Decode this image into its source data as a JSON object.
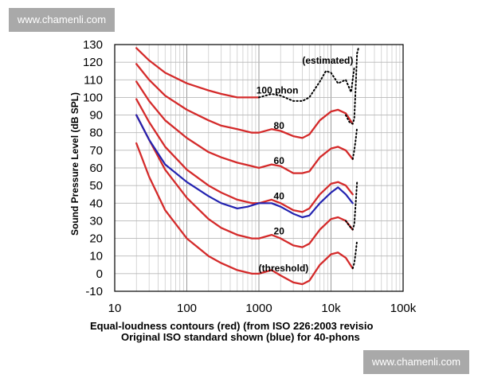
{
  "watermark_top": "www.chamenli.com",
  "watermark_bottom": "www.chamenli.com",
  "chart_data": {
    "type": "line",
    "ylabel": "Sound Pressure Level (dB SPL)",
    "xlabel": "",
    "caption_line1": "Equal-loudness contours (red) (from ISO 226:2003 revisio",
    "caption_line2": "Original ISO standard shown (blue) for 40-phons",
    "x_scale": "log",
    "xlim": [
      10,
      100000
    ],
    "ylim": [
      -10,
      130
    ],
    "x_ticks": [
      {
        "v": 10,
        "label": "10"
      },
      {
        "v": 100,
        "label": "100"
      },
      {
        "v": 1000,
        "label": "1000"
      },
      {
        "v": 10000,
        "label": "10k"
      },
      {
        "v": 100000,
        "label": "100k"
      }
    ],
    "y_ticks": [
      -10,
      0,
      10,
      20,
      30,
      40,
      50,
      60,
      70,
      80,
      90,
      100,
      110,
      120,
      130
    ],
    "grid": true,
    "colors": {
      "red": "#d42a2a",
      "blue": "#2222b0",
      "dotted": "#000000"
    },
    "series": [
      {
        "label": "(threshold)",
        "color": "#d42a2a",
        "style": "solid",
        "points": [
          [
            20,
            74
          ],
          [
            30,
            55
          ],
          [
            50,
            36
          ],
          [
            100,
            20
          ],
          [
            200,
            10
          ],
          [
            300,
            6
          ],
          [
            500,
            2
          ],
          [
            800,
            0
          ],
          [
            1000,
            0
          ],
          [
            1500,
            2
          ],
          [
            2000,
            -1
          ],
          [
            3000,
            -5
          ],
          [
            4000,
            -6
          ],
          [
            5000,
            -4
          ],
          [
            7000,
            5
          ],
          [
            10000,
            11
          ],
          [
            12500,
            12
          ],
          [
            16000,
            9
          ],
          [
            20000,
            3
          ]
        ]
      },
      {
        "label": "20",
        "color": "#d42a2a",
        "style": "solid",
        "points": [
          [
            20,
            90
          ],
          [
            30,
            76
          ],
          [
            50,
            59
          ],
          [
            100,
            43
          ],
          [
            200,
            31
          ],
          [
            300,
            26
          ],
          [
            500,
            22
          ],
          [
            800,
            20
          ],
          [
            1000,
            20
          ],
          [
            1500,
            22
          ],
          [
            2000,
            20
          ],
          [
            3000,
            16
          ],
          [
            4000,
            15
          ],
          [
            5000,
            17
          ],
          [
            7000,
            25
          ],
          [
            10000,
            31
          ],
          [
            12500,
            32
          ],
          [
            16000,
            30
          ],
          [
            20000,
            25
          ]
        ]
      },
      {
        "label": "40",
        "color": "#d42a2a",
        "style": "solid",
        "points": [
          [
            20,
            99
          ],
          [
            30,
            86
          ],
          [
            50,
            72
          ],
          [
            100,
            59
          ],
          [
            200,
            50
          ],
          [
            300,
            46
          ],
          [
            500,
            42
          ],
          [
            800,
            40
          ],
          [
            1000,
            40
          ],
          [
            1500,
            42
          ],
          [
            2000,
            40
          ],
          [
            3000,
            36
          ],
          [
            4000,
            35
          ],
          [
            5000,
            37
          ],
          [
            7000,
            45
          ],
          [
            10000,
            51
          ],
          [
            12500,
            52
          ],
          [
            16000,
            50
          ],
          [
            20000,
            45
          ]
        ]
      },
      {
        "label": "60",
        "color": "#d42a2a",
        "style": "solid",
        "points": [
          [
            20,
            109
          ],
          [
            30,
            98
          ],
          [
            50,
            87
          ],
          [
            100,
            77
          ],
          [
            200,
            69
          ],
          [
            300,
            66
          ],
          [
            500,
            63
          ],
          [
            800,
            61
          ],
          [
            1000,
            60
          ],
          [
            1500,
            62
          ],
          [
            2000,
            61
          ],
          [
            3000,
            57
          ],
          [
            4000,
            57
          ],
          [
            5000,
            58
          ],
          [
            7000,
            66
          ],
          [
            10000,
            71
          ],
          [
            12500,
            72
          ],
          [
            16000,
            70
          ],
          [
            20000,
            65
          ]
        ]
      },
      {
        "label": "80",
        "color": "#d42a2a",
        "style": "solid",
        "points": [
          [
            20,
            119
          ],
          [
            30,
            110
          ],
          [
            50,
            101
          ],
          [
            100,
            93
          ],
          [
            200,
            87
          ],
          [
            300,
            84
          ],
          [
            500,
            82
          ],
          [
            800,
            80
          ],
          [
            1000,
            80
          ],
          [
            1500,
            82
          ],
          [
            2000,
            81
          ],
          [
            3000,
            78
          ],
          [
            4000,
            77
          ],
          [
            5000,
            79
          ],
          [
            7000,
            87
          ],
          [
            10000,
            92
          ],
          [
            12500,
            93
          ],
          [
            16000,
            91
          ],
          [
            20000,
            85
          ]
        ]
      },
      {
        "label": "100 phon",
        "color": "#d42a2a",
        "style": "solid",
        "points": [
          [
            20,
            128
          ],
          [
            30,
            121
          ],
          [
            50,
            114
          ],
          [
            100,
            108
          ],
          [
            200,
            104
          ],
          [
            300,
            102
          ],
          [
            500,
            100
          ],
          [
            800,
            100
          ],
          [
            1000,
            100
          ]
        ]
      },
      {
        "label": "(estimated)",
        "color": "#000000",
        "style": "dotted",
        "points": [
          [
            1000,
            100
          ],
          [
            1500,
            102
          ],
          [
            2000,
            101
          ],
          [
            3000,
            98
          ],
          [
            4000,
            98
          ],
          [
            5000,
            100
          ],
          [
            7000,
            109
          ],
          [
            8500,
            115
          ],
          [
            10000,
            114
          ],
          [
            12500,
            108
          ],
          [
            16000,
            110
          ],
          [
            19000,
            103
          ],
          [
            21000,
            117
          ]
        ]
      },
      {
        "label": "",
        "color": "#000000",
        "style": "dotted",
        "points": [
          [
            16000,
            90
          ],
          [
            18000,
            86
          ],
          [
            20000,
            85
          ],
          [
            21000,
            88
          ],
          [
            22000,
            106
          ],
          [
            23000,
            125
          ],
          [
            24000,
            128
          ]
        ]
      },
      {
        "label": "",
        "color": "#000000",
        "style": "dotted",
        "points": [
          [
            20000,
            65
          ],
          [
            21000,
            70
          ],
          [
            22000,
            76
          ],
          [
            23000,
            83
          ]
        ]
      },
      {
        "label": "",
        "color": "#000000",
        "style": "dotted",
        "points": [
          [
            16000,
            30
          ],
          [
            18000,
            27
          ],
          [
            20000,
            25
          ],
          [
            21000,
            28
          ],
          [
            22000,
            40
          ],
          [
            23000,
            52
          ]
        ]
      },
      {
        "label": "",
        "color": "#000000",
        "style": "dotted",
        "points": [
          [
            20000,
            3
          ],
          [
            21000,
            6
          ],
          [
            22000,
            12
          ],
          [
            23000,
            19
          ]
        ]
      },
      {
        "label": "",
        "color": "#2222b0",
        "style": "solid",
        "original_iso": true,
        "points": [
          [
            20,
            90
          ],
          [
            30,
            76
          ],
          [
            50,
            62
          ],
          [
            100,
            52
          ],
          [
            200,
            44
          ],
          [
            300,
            40
          ],
          [
            500,
            37
          ],
          [
            700,
            38
          ],
          [
            1000,
            40
          ],
          [
            1500,
            40
          ],
          [
            2000,
            38
          ],
          [
            3000,
            34
          ],
          [
            4000,
            32
          ],
          [
            5000,
            33
          ],
          [
            7000,
            40
          ],
          [
            10000,
            46
          ],
          [
            12500,
            49
          ],
          [
            16000,
            45
          ],
          [
            20000,
            40
          ]
        ]
      }
    ],
    "curve_labels": [
      {
        "text": "(threshold)",
        "x": 2200,
        "y": 3
      },
      {
        "text": "20",
        "x": 1900,
        "y": 24
      },
      {
        "text": "40",
        "x": 1900,
        "y": 44
      },
      {
        "text": "60",
        "x": 1900,
        "y": 64
      },
      {
        "text": "80",
        "x": 1900,
        "y": 84
      },
      {
        "text": "100 phon",
        "x": 1800,
        "y": 104
      },
      {
        "text": "(estimated)",
        "x": 9000,
        "y": 121
      }
    ]
  }
}
